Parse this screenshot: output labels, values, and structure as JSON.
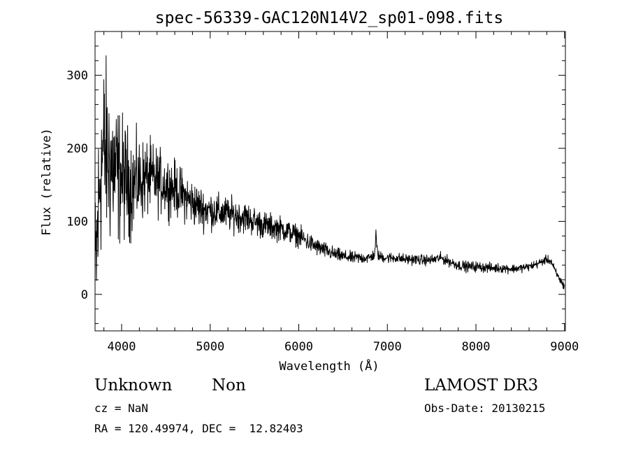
{
  "chart_data": {
    "type": "line",
    "title": "spec-56339-GAC120N14V2_sp01-098.fits",
    "xlabel": "Wavelength (Å)",
    "ylabel": "Flux (relative)",
    "xlim": [
      3700,
      9010
    ],
    "ylim": [
      -50,
      360
    ],
    "xticks": [
      4000,
      5000,
      6000,
      7000,
      8000,
      9000
    ],
    "yticks": [
      0,
      100,
      200,
      300
    ],
    "grid": false,
    "series": [
      {
        "name": "spectrum",
        "noise_profile": {
          "wavelength": [
            3700,
            3850,
            4000,
            4200,
            4500,
            5000,
            5500,
            6000,
            6500,
            7000,
            7500,
            8000,
            8500,
            9000
          ],
          "amplitude": [
            90,
            85,
            60,
            40,
            28,
            18,
            14,
            10,
            6,
            5,
            5,
            5,
            4,
            4
          ]
        },
        "x": [
          3700,
          3730,
          3760,
          3800,
          3850,
          3900,
          3950,
          4000,
          4050,
          4100,
          4200,
          4300,
          4400,
          4500,
          4600,
          4700,
          4800,
          4900,
          5000,
          5100,
          5200,
          5300,
          5400,
          5500,
          5600,
          5700,
          5800,
          5900,
          6000,
          6100,
          6200,
          6300,
          6400,
          6500,
          6600,
          6700,
          6800,
          6860,
          6870,
          6880,
          6900,
          7000,
          7100,
          7200,
          7300,
          7400,
          7500,
          7600,
          7700,
          7800,
          7900,
          8000,
          8100,
          8200,
          8300,
          8400,
          8500,
          8600,
          8700,
          8800,
          8850,
          8900,
          8950,
          9000
        ],
        "y": [
          10,
          90,
          170,
          200,
          185,
          175,
          165,
          160,
          155,
          150,
          155,
          160,
          155,
          150,
          145,
          135,
          125,
          118,
          115,
          112,
          110,
          108,
          105,
          100,
          95,
          92,
          90,
          85,
          80,
          72,
          65,
          60,
          55,
          52,
          50,
          50,
          50,
          55,
          85,
          65,
          52,
          50,
          50,
          48,
          48,
          47,
          47,
          50,
          45,
          40,
          38,
          38,
          37,
          36,
          36,
          35,
          36,
          38,
          42,
          48,
          45,
          30,
          20,
          10
        ]
      }
    ]
  },
  "info": {
    "class": "Unknown",
    "subclass": "Non",
    "survey": "LAMOST DR3",
    "cz": "cz = NaN",
    "obs_date": "Obs-Date: 20130215",
    "radec": "RA = 120.49974, DEC =  12.82403"
  }
}
